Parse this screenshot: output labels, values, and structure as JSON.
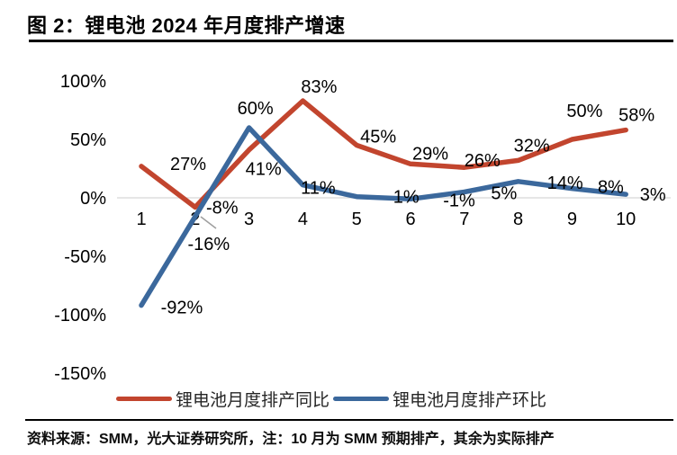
{
  "header": {
    "title": "图 2：锂电池 2024 年月度排产增速"
  },
  "footer": {
    "source_note": "资料来源：SMM，光大证券研究所，注：10 月为 SMM 预期排产，其余为实际排产"
  },
  "chart_data": {
    "type": "line",
    "title": "锂电池 2024 年月度排产增速",
    "xlabel": "",
    "ylabel": "",
    "categories": [
      "1",
      "2",
      "3",
      "4",
      "5",
      "6",
      "7",
      "8",
      "9",
      "10"
    ],
    "y_ticks": [
      100,
      50,
      0,
      -50,
      -100,
      -150
    ],
    "y_tick_labels": [
      "100%",
      "50%",
      "0%",
      "-50%",
      "-100%",
      "-150%"
    ],
    "ylim": [
      -150,
      100
    ],
    "grid": "zero-line-only",
    "legend_position": "bottom",
    "grid_color": "#d6d6d6",
    "label_color": "#000000",
    "series": [
      {
        "name": "锂电池月度排产同比",
        "color": "#c2452e",
        "values": [
          27,
          -8,
          41,
          83,
          45,
          29,
          26,
          32,
          50,
          58
        ],
        "labels": [
          "27%",
          "-8%",
          "41%",
          "83%",
          "45%",
          "29%",
          "26%",
          "32%",
          "50%",
          "58%"
        ]
      },
      {
        "name": "锂电池月度排产环比",
        "color": "#3b689c",
        "values": [
          -92,
          -16,
          60,
          11,
          1,
          -1,
          5,
          14,
          8,
          3
        ],
        "labels": [
          "-92%",
          "-16%",
          "60%",
          "11%",
          "1%",
          "-1%",
          "5%",
          "14%",
          "8%",
          "3%"
        ]
      }
    ]
  }
}
